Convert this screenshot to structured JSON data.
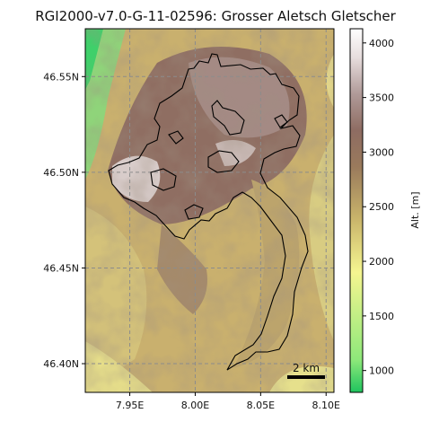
{
  "title": "RGI2000-v7.0-G-11-02596: Grosser Aletsch Gletscher",
  "map": {
    "lon_range": [
      7.916,
      8.106
    ],
    "lat_range": [
      46.385,
      46.575
    ],
    "x_ticks": [
      {
        "value": 7.95,
        "label": "7.95E"
      },
      {
        "value": 8.0,
        "label": "8.00E"
      },
      {
        "value": 8.05,
        "label": "8.05E"
      },
      {
        "value": 8.1,
        "label": "8.10E"
      }
    ],
    "y_ticks": [
      {
        "value": 46.4,
        "label": "46.40N"
      },
      {
        "value": 46.45,
        "label": "46.45N"
      },
      {
        "value": 46.5,
        "label": "46.50N"
      },
      {
        "value": 46.55,
        "label": "46.55N"
      }
    ],
    "grid": true,
    "grid_color": "#8c8c8c",
    "outline_color": "#000000",
    "scale_bar": {
      "label": "2 km"
    }
  },
  "colorbar": {
    "label": "Alt. [m]",
    "range": [
      800,
      4130
    ],
    "ticks": [
      {
        "value": 1000,
        "label": "1000"
      },
      {
        "value": 1500,
        "label": "1500"
      },
      {
        "value": 2000,
        "label": "2000"
      },
      {
        "value": 2500,
        "label": "2500"
      },
      {
        "value": 3000,
        "label": "3000"
      },
      {
        "value": 3500,
        "label": "3500"
      },
      {
        "value": 4000,
        "label": "4000"
      }
    ],
    "colors": [
      "#1fc45e",
      "#8ee87a",
      "#f5f590",
      "#c8b36a",
      "#9a7a5c",
      "#8e6c62",
      "#b09a98",
      "#e6dcdc",
      "#ffffff"
    ]
  }
}
